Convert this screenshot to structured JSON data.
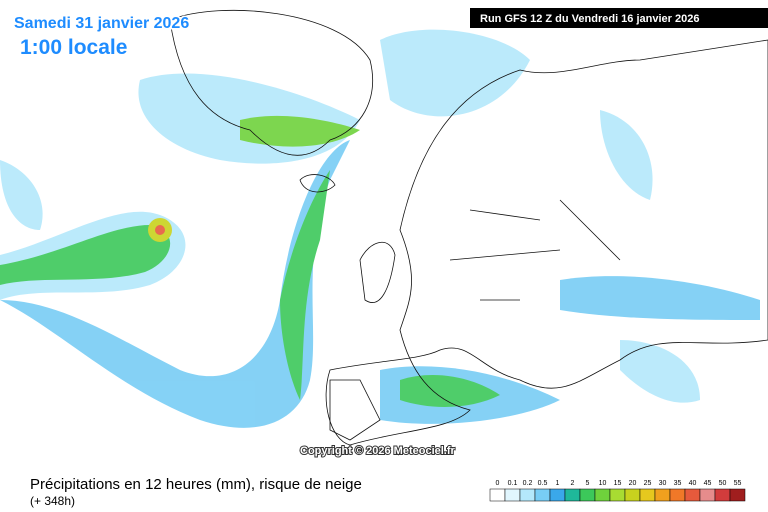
{
  "map": {
    "date": "Samedi 31 janvier 2026",
    "time": "1:00 locale",
    "run": "Run GFS 12 Z du Vendredi 16 janvier 2026",
    "copyright": "Copyright © 2026 Meteociel.fr"
  },
  "caption": {
    "title": "Précipitations en 12 heures (mm), risque de neige",
    "lead": "(+ 348h)"
  },
  "legend": [
    {
      "value": 0,
      "color": "#ffffff"
    },
    {
      "value": 0.1,
      "color": "#e1f6fe"
    },
    {
      "value": 0.2,
      "color": "#b4e8fb"
    },
    {
      "value": 0.5,
      "color": "#78cdf5"
    },
    {
      "value": 1,
      "color": "#3aa8ea"
    },
    {
      "value": 2,
      "color": "#1fb89a"
    },
    {
      "value": 5,
      "color": "#3cc85a"
    },
    {
      "value": 10,
      "color": "#6fd23c"
    },
    {
      "value": 15,
      "color": "#a8dc32"
    },
    {
      "value": 20,
      "color": "#c8d21e"
    },
    {
      "value": 25,
      "color": "#e6c81e"
    },
    {
      "value": 30,
      "color": "#f0a01e"
    },
    {
      "value": 35,
      "color": "#f07828"
    },
    {
      "value": 40,
      "color": "#e65a3c"
    },
    {
      "value": 45,
      "color": "#e68c8c"
    },
    {
      "value": 50,
      "color": "#d23c3c"
    },
    {
      "value": 55,
      "color": "#a01e1e"
    }
  ]
}
